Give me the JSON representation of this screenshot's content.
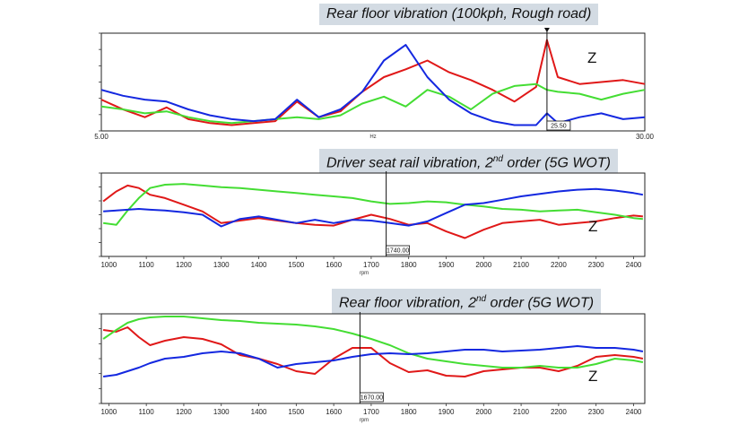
{
  "colors": {
    "red": "#e01818",
    "green": "#44dd33",
    "blue": "#1428e0",
    "title_bg": "#d3dbe3"
  },
  "chart_data": [
    {
      "type": "line",
      "title": "Rear floor vibration (100kph, Rough road)",
      "title_sup": "",
      "title_suffix": "",
      "xlabel": "Hz",
      "x_tick_labels": [
        "5.00",
        "30.00"
      ],
      "xlim": [
        5,
        30
      ],
      "ylim": [
        0,
        1
      ],
      "annotation": "Z",
      "cursor": {
        "x": 25.5,
        "label": "25.50"
      },
      "series": [
        {
          "color": "red",
          "x": [
            5,
            6,
            7,
            8,
            9,
            10,
            11,
            12,
            13,
            14,
            15,
            16,
            17,
            18,
            19,
            20,
            21,
            22,
            23,
            24,
            25,
            25.5,
            26,
            27,
            28,
            29,
            30
          ],
          "y": [
            0.32,
            0.22,
            0.14,
            0.24,
            0.12,
            0.08,
            0.06,
            0.08,
            0.1,
            0.3,
            0.14,
            0.2,
            0.4,
            0.55,
            0.63,
            0.72,
            0.6,
            0.52,
            0.42,
            0.3,
            0.45,
            0.93,
            0.55,
            0.48,
            0.5,
            0.52,
            0.48
          ]
        },
        {
          "color": "green",
          "x": [
            5,
            6,
            7,
            8,
            9,
            10,
            11,
            12,
            13,
            14,
            15,
            16,
            17,
            18,
            19,
            20,
            21,
            22,
            23,
            24,
            25,
            25.5,
            26,
            27,
            28,
            29,
            30
          ],
          "y": [
            0.25,
            0.22,
            0.18,
            0.2,
            0.14,
            0.1,
            0.08,
            0.1,
            0.12,
            0.14,
            0.12,
            0.16,
            0.28,
            0.35,
            0.25,
            0.42,
            0.35,
            0.22,
            0.38,
            0.46,
            0.48,
            0.42,
            0.4,
            0.38,
            0.32,
            0.38,
            0.42
          ]
        },
        {
          "color": "blue",
          "x": [
            5,
            6,
            7,
            8,
            9,
            10,
            11,
            12,
            13,
            14,
            15,
            16,
            17,
            18,
            19,
            20,
            21,
            22,
            23,
            24,
            25,
            25.5,
            26,
            27,
            28,
            29,
            30
          ],
          "y": [
            0.42,
            0.36,
            0.32,
            0.3,
            0.22,
            0.16,
            0.12,
            0.1,
            0.12,
            0.32,
            0.14,
            0.22,
            0.4,
            0.72,
            0.88,
            0.55,
            0.32,
            0.18,
            0.1,
            0.06,
            0.06,
            0.18,
            0.08,
            0.14,
            0.18,
            0.12,
            0.14
          ]
        }
      ]
    },
    {
      "type": "line",
      "title": "Driver seat rail vibration, 2",
      "title_sup": "nd",
      "title_suffix": " order (5G WOT)",
      "xlabel": "rpm",
      "x_tick_labels": [
        "1000",
        "1100",
        "1200",
        "1300",
        "1400",
        "1500",
        "1600",
        "1700",
        "1800",
        "1900",
        "2000",
        "2100",
        "2200",
        "2300",
        "2400"
      ],
      "xlim": [
        980,
        2430
      ],
      "ylim": [
        0,
        1
      ],
      "annotation": "Z",
      "cursor": {
        "x": 1740,
        "label": "1740.00"
      },
      "series": [
        {
          "color": "red",
          "x": [
            985,
            1020,
            1050,
            1080,
            1110,
            1150,
            1200,
            1250,
            1300,
            1350,
            1400,
            1450,
            1500,
            1550,
            1600,
            1650,
            1700,
            1750,
            1800,
            1850,
            1900,
            1950,
            2000,
            2050,
            2100,
            2150,
            2200,
            2250,
            2300,
            2350,
            2400,
            2425
          ],
          "y": [
            0.66,
            0.78,
            0.85,
            0.82,
            0.74,
            0.7,
            0.62,
            0.54,
            0.4,
            0.43,
            0.46,
            0.43,
            0.4,
            0.38,
            0.37,
            0.44,
            0.5,
            0.45,
            0.38,
            0.4,
            0.3,
            0.22,
            0.32,
            0.4,
            0.42,
            0.44,
            0.38,
            0.4,
            0.42,
            0.46,
            0.49,
            0.48
          ]
        },
        {
          "color": "green",
          "x": [
            985,
            1020,
            1050,
            1080,
            1110,
            1150,
            1200,
            1250,
            1300,
            1350,
            1400,
            1450,
            1500,
            1550,
            1600,
            1650,
            1700,
            1750,
            1800,
            1850,
            1900,
            1950,
            2000,
            2050,
            2100,
            2150,
            2200,
            2250,
            2300,
            2350,
            2400,
            2425
          ],
          "y": [
            0.4,
            0.38,
            0.55,
            0.7,
            0.82,
            0.86,
            0.87,
            0.85,
            0.83,
            0.82,
            0.8,
            0.78,
            0.76,
            0.74,
            0.72,
            0.7,
            0.66,
            0.63,
            0.64,
            0.66,
            0.65,
            0.62,
            0.6,
            0.57,
            0.56,
            0.54,
            0.55,
            0.56,
            0.53,
            0.5,
            0.46,
            0.45
          ]
        },
        {
          "color": "blue",
          "x": [
            985,
            1020,
            1050,
            1080,
            1110,
            1150,
            1200,
            1250,
            1300,
            1350,
            1400,
            1450,
            1500,
            1550,
            1600,
            1650,
            1700,
            1750,
            1800,
            1850,
            1900,
            1950,
            2000,
            2050,
            2100,
            2150,
            2200,
            2250,
            2300,
            2350,
            2400,
            2425
          ],
          "y": [
            0.54,
            0.55,
            0.56,
            0.57,
            0.56,
            0.55,
            0.53,
            0.5,
            0.36,
            0.45,
            0.48,
            0.44,
            0.4,
            0.44,
            0.4,
            0.44,
            0.43,
            0.4,
            0.37,
            0.42,
            0.52,
            0.62,
            0.64,
            0.68,
            0.72,
            0.75,
            0.78,
            0.8,
            0.81,
            0.79,
            0.76,
            0.74
          ]
        }
      ]
    },
    {
      "type": "line",
      "title": "Rear floor vibration, 2",
      "title_sup": "nd",
      "title_suffix": " order (5G WOT)",
      "xlabel": "rpm",
      "x_tick_labels": [
        "1000",
        "1100",
        "1200",
        "1300",
        "1400",
        "1500",
        "1600",
        "1700",
        "1800",
        "1900",
        "2000",
        "2100",
        "2200",
        "2300",
        "2400"
      ],
      "xlim": [
        980,
        2430
      ],
      "ylim": [
        0,
        1
      ],
      "annotation": "Z",
      "cursor": {
        "x": 1670,
        "label": "1670.00"
      },
      "series": [
        {
          "color": "red",
          "x": [
            985,
            1020,
            1050,
            1080,
            1110,
            1150,
            1200,
            1250,
            1300,
            1350,
            1400,
            1450,
            1500,
            1550,
            1600,
            1650,
            1700,
            1750,
            1800,
            1850,
            1900,
            1950,
            2000,
            2050,
            2100,
            2150,
            2200,
            2250,
            2300,
            2350,
            2400,
            2425
          ],
          "y": [
            0.82,
            0.8,
            0.85,
            0.74,
            0.65,
            0.7,
            0.74,
            0.72,
            0.66,
            0.54,
            0.5,
            0.44,
            0.36,
            0.33,
            0.5,
            0.62,
            0.62,
            0.45,
            0.35,
            0.37,
            0.31,
            0.3,
            0.36,
            0.38,
            0.4,
            0.4,
            0.36,
            0.42,
            0.52,
            0.54,
            0.52,
            0.5
          ]
        },
        {
          "color": "green",
          "x": [
            985,
            1020,
            1050,
            1080,
            1110,
            1150,
            1200,
            1250,
            1300,
            1350,
            1400,
            1450,
            1500,
            1550,
            1600,
            1650,
            1700,
            1750,
            1800,
            1850,
            1900,
            1950,
            2000,
            2050,
            2100,
            2150,
            2200,
            2250,
            2300,
            2350,
            2400,
            2425
          ],
          "y": [
            0.72,
            0.82,
            0.9,
            0.94,
            0.96,
            0.97,
            0.97,
            0.95,
            0.93,
            0.92,
            0.9,
            0.89,
            0.88,
            0.86,
            0.83,
            0.78,
            0.72,
            0.65,
            0.56,
            0.5,
            0.47,
            0.44,
            0.42,
            0.4,
            0.4,
            0.42,
            0.4,
            0.4,
            0.44,
            0.5,
            0.48,
            0.46
          ]
        },
        {
          "color": "blue",
          "x": [
            985,
            1020,
            1050,
            1080,
            1110,
            1150,
            1200,
            1250,
            1300,
            1350,
            1400,
            1450,
            1500,
            1550,
            1600,
            1650,
            1700,
            1750,
            1800,
            1850,
            1900,
            1950,
            2000,
            2050,
            2100,
            2150,
            2200,
            2250,
            2300,
            2350,
            2400,
            2425
          ],
          "y": [
            0.3,
            0.32,
            0.36,
            0.4,
            0.45,
            0.5,
            0.52,
            0.56,
            0.58,
            0.56,
            0.5,
            0.4,
            0.44,
            0.46,
            0.48,
            0.52,
            0.55,
            0.56,
            0.55,
            0.56,
            0.58,
            0.6,
            0.6,
            0.58,
            0.59,
            0.6,
            0.62,
            0.64,
            0.62,
            0.62,
            0.6,
            0.58
          ]
        }
      ]
    }
  ]
}
